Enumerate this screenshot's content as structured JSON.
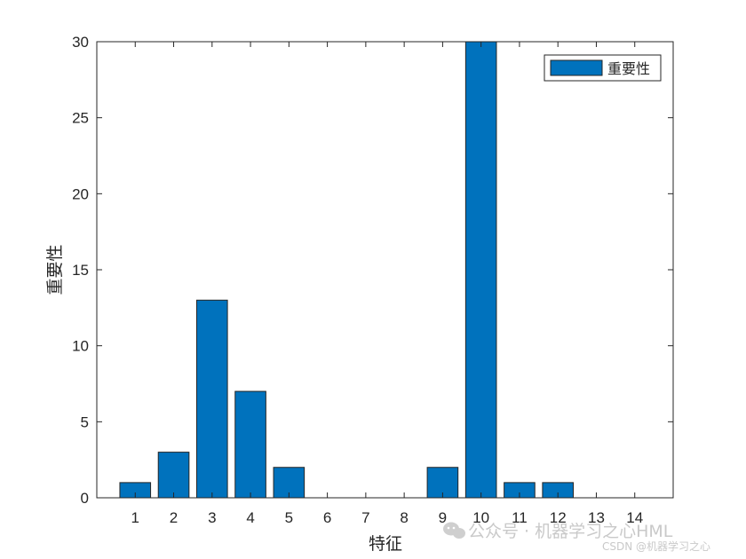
{
  "chart_data": {
    "type": "bar",
    "categories": [
      "1",
      "2",
      "3",
      "4",
      "5",
      "6",
      "7",
      "8",
      "9",
      "10",
      "11",
      "12",
      "13",
      "14"
    ],
    "values": [
      1,
      3,
      13,
      7,
      2,
      0,
      0,
      0,
      2,
      30,
      1,
      1,
      0,
      0
    ],
    "series": [
      {
        "name": "重要性",
        "values": [
          1,
          3,
          13,
          7,
          2,
          0,
          0,
          0,
          2,
          30,
          1,
          1,
          0,
          0
        ]
      }
    ],
    "xlabel": "特征",
    "ylabel": "重要性",
    "ylim": [
      0,
      30
    ],
    "yticks": [
      0,
      5,
      10,
      15,
      20,
      25,
      30
    ],
    "grid": false,
    "legend": "top-right",
    "bar_color": "#0072BD"
  },
  "watermark": {
    "main": "公众号 · 机器学习之心HML",
    "sub": "CSDN @机器学习之心"
  }
}
